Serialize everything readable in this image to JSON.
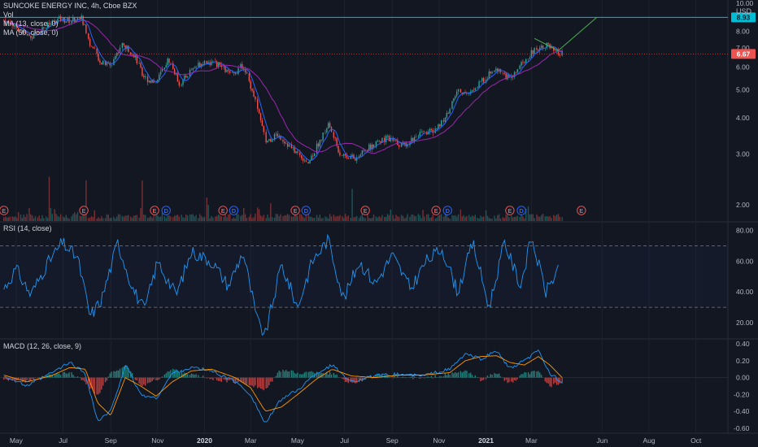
{
  "header": {
    "title": "SUNCOKE ENERGY INC, 4h, Cboe BZX",
    "vol_label": "Vol",
    "ma1_label": "MA (13, close, 0)",
    "ma2_label": "MA (50, close, 0)",
    "currency": "USD"
  },
  "rsi_label": "RSI (14, close)",
  "macd_label": "MACD (12, 26, close, 9)",
  "colors": {
    "background": "#131722",
    "grid": "#1e222d",
    "up": "#26a69a",
    "down": "#ef5350",
    "ma_fast": "#2962ff",
    "ma_slow": "#9c27b0",
    "rsi": "#2196f3",
    "macd": "#2196f3",
    "signal": "#ff9800",
    "resistance": "#00bcd4",
    "trendline": "#4caf50",
    "event_earnings": "#ef5350",
    "event_dividend": "#2962ff"
  },
  "chart_data": [
    {
      "type": "candlestick",
      "name": "price",
      "x_axis": [
        "May",
        "Jul",
        "Sep",
        "Nov",
        "2020",
        "Mar",
        "May",
        "Jul",
        "Sep",
        "Nov",
        "2021",
        "Mar",
        "Jun",
        "Aug",
        "Oct"
      ],
      "y_ticks": [
        "10.00",
        "8.93",
        "8.00",
        "7.00",
        "6.67",
        "6.00",
        "5.00",
        "4.00",
        "3.00",
        "2.00"
      ],
      "ylim": [
        1.8,
        10.0
      ],
      "price_path": [
        [
          "2019-04-15",
          8.7
        ],
        [
          "2019-05-01",
          8.3
        ],
        [
          "2019-05-20",
          7.6
        ],
        [
          "2019-06-05",
          8.2
        ],
        [
          "2019-06-25",
          8.8
        ],
        [
          "2019-07-10",
          8.7
        ],
        [
          "2019-07-25",
          8.9
        ],
        [
          "2019-08-05",
          7.2
        ],
        [
          "2019-08-20",
          6.2
        ],
        [
          "2019-09-01",
          6.1
        ],
        [
          "2019-09-15",
          7.2
        ],
        [
          "2019-09-30",
          6.7
        ],
        [
          "2019-10-15",
          5.5
        ],
        [
          "2019-10-30",
          5.3
        ],
        [
          "2019-11-15",
          6.4
        ],
        [
          "2019-11-30",
          5.2
        ],
        [
          "2019-12-15",
          5.9
        ],
        [
          "2020-01-01",
          6.3
        ],
        [
          "2020-01-20",
          6.1
        ],
        [
          "2020-02-05",
          5.6
        ],
        [
          "2020-02-20",
          6.1
        ],
        [
          "2020-03-05",
          4.8
        ],
        [
          "2020-03-20",
          3.3
        ],
        [
          "2020-04-05",
          3.5
        ],
        [
          "2020-04-25",
          3.1
        ],
        [
          "2020-05-15",
          2.8
        ],
        [
          "2020-06-01",
          3.4
        ],
        [
          "2020-06-10",
          3.8
        ],
        [
          "2020-06-25",
          3.0
        ],
        [
          "2020-07-15",
          2.9
        ],
        [
          "2020-08-05",
          3.2
        ],
        [
          "2020-08-25",
          3.4
        ],
        [
          "2020-09-15",
          3.2
        ],
        [
          "2020-10-05",
          3.5
        ],
        [
          "2020-10-25",
          3.6
        ],
        [
          "2020-11-10",
          4.0
        ],
        [
          "2020-11-25",
          5.0
        ],
        [
          "2020-12-10",
          4.8
        ],
        [
          "2020-12-25",
          5.3
        ],
        [
          "2021-01-15",
          6.0
        ],
        [
          "2021-02-01",
          5.4
        ],
        [
          "2021-02-20",
          6.3
        ],
        [
          "2021-03-05",
          6.9
        ],
        [
          "2021-03-20",
          7.2
        ],
        [
          "2021-04-01",
          6.7
        ],
        [
          "2021-04-10",
          6.67
        ]
      ],
      "resistance_level": 8.93,
      "last_price": 6.67,
      "earnings_event_dates": [
        "2019-04-15",
        "2019-07-28",
        "2019-10-28",
        "2020-01-25",
        "2020-04-28",
        "2020-07-28",
        "2020-10-28",
        "2021-02-01",
        "2021-05-05"
      ],
      "dividend_event_dates": [
        "2019-11-12",
        "2020-02-08",
        "2020-05-12",
        "2020-11-12",
        "2021-02-16"
      ]
    },
    {
      "type": "line",
      "name": "RSI",
      "y_ticks": [
        "80.00",
        "60.00",
        "40.00",
        "20.00"
      ],
      "ylim": [
        10,
        85
      ],
      "bands": [
        70,
        30
      ],
      "path": [
        [
          "2019-04-15",
          42
        ],
        [
          "2019-05-01",
          55
        ],
        [
          "2019-05-20",
          38
        ],
        [
          "2019-06-10",
          58
        ],
        [
          "2019-06-30",
          72
        ],
        [
          "2019-07-20",
          62
        ],
        [
          "2019-08-05",
          24
        ],
        [
          "2019-08-20",
          35
        ],
        [
          "2019-09-10",
          72
        ],
        [
          "2019-09-30",
          42
        ],
        [
          "2019-10-15",
          28
        ],
        [
          "2019-11-01",
          60
        ],
        [
          "2019-11-25",
          38
        ],
        [
          "2019-12-15",
          66
        ],
        [
          "2020-01-10",
          60
        ],
        [
          "2020-02-01",
          44
        ],
        [
          "2020-02-20",
          66
        ],
        [
          "2020-03-10",
          20
        ],
        [
          "2020-03-20",
          12
        ],
        [
          "2020-04-10",
          58
        ],
        [
          "2020-05-01",
          30
        ],
        [
          "2020-05-20",
          60
        ],
        [
          "2020-06-10",
          74
        ],
        [
          "2020-06-30",
          35
        ],
        [
          "2020-07-20",
          60
        ],
        [
          "2020-08-10",
          45
        ],
        [
          "2020-09-01",
          64
        ],
        [
          "2020-09-25",
          42
        ],
        [
          "2020-10-15",
          60
        ],
        [
          "2020-11-05",
          68
        ],
        [
          "2020-11-25",
          40
        ],
        [
          "2020-12-15",
          72
        ],
        [
          "2021-01-05",
          30
        ],
        [
          "2021-01-25",
          72
        ],
        [
          "2021-02-15",
          44
        ],
        [
          "2021-03-01",
          75
        ],
        [
          "2021-03-20",
          40
        ],
        [
          "2021-04-05",
          55
        ]
      ]
    },
    {
      "type": "line",
      "name": "MACD",
      "y_ticks": [
        "0.40",
        "0.20",
        "0.00",
        "-0.20",
        "-0.40",
        "-0.60"
      ],
      "ylim": [
        -0.65,
        0.45
      ],
      "macd_path": [
        [
          "2019-04-15",
          0.02
        ],
        [
          "2019-05-15",
          -0.1
        ],
        [
          "2019-06-15",
          0.05
        ],
        [
          "2019-07-10",
          0.18
        ],
        [
          "2019-07-30",
          0.05
        ],
        [
          "2019-08-15",
          -0.52
        ],
        [
          "2019-09-01",
          -0.4
        ],
        [
          "2019-09-20",
          0.15
        ],
        [
          "2019-10-10",
          -0.2
        ],
        [
          "2019-10-30",
          -0.25
        ],
        [
          "2019-11-20",
          0.05
        ],
        [
          "2019-12-15",
          0.12
        ],
        [
          "2020-01-10",
          0.08
        ],
        [
          "2020-02-10",
          -0.05
        ],
        [
          "2020-03-01",
          -0.2
        ],
        [
          "2020-03-20",
          -0.55
        ],
        [
          "2020-04-10",
          -0.25
        ],
        [
          "2020-05-01",
          -0.15
        ],
        [
          "2020-05-25",
          0.05
        ],
        [
          "2020-06-15",
          0.15
        ],
        [
          "2020-07-10",
          -0.05
        ],
        [
          "2020-08-10",
          0.02
        ],
        [
          "2020-09-10",
          0.04
        ],
        [
          "2020-10-10",
          0.02
        ],
        [
          "2020-11-15",
          0.1
        ],
        [
          "2020-12-05",
          0.28
        ],
        [
          "2020-12-25",
          0.22
        ],
        [
          "2021-01-15",
          0.32
        ],
        [
          "2021-02-01",
          0.1
        ],
        [
          "2021-02-20",
          0.2
        ],
        [
          "2021-03-10",
          0.32
        ],
        [
          "2021-03-25",
          0.05
        ],
        [
          "2021-04-10",
          -0.05
        ]
      ],
      "signal_path": [
        [
          "2019-04-15",
          0.03
        ],
        [
          "2019-05-15",
          -0.05
        ],
        [
          "2019-06-15",
          0.02
        ],
        [
          "2019-07-10",
          0.12
        ],
        [
          "2019-07-30",
          0.1
        ],
        [
          "2019-08-15",
          -0.3
        ],
        [
          "2019-09-01",
          -0.45
        ],
        [
          "2019-09-20",
          0.0
        ],
        [
          "2019-10-10",
          -0.1
        ],
        [
          "2019-10-30",
          -0.22
        ],
        [
          "2019-11-20",
          -0.05
        ],
        [
          "2019-12-15",
          0.08
        ],
        [
          "2020-01-10",
          0.1
        ],
        [
          "2020-02-10",
          0.0
        ],
        [
          "2020-03-01",
          -0.12
        ],
        [
          "2020-03-20",
          -0.4
        ],
        [
          "2020-04-10",
          -0.35
        ],
        [
          "2020-05-01",
          -0.2
        ],
        [
          "2020-05-25",
          -0.02
        ],
        [
          "2020-06-15",
          0.1
        ],
        [
          "2020-07-10",
          0.02
        ],
        [
          "2020-08-10",
          0.0
        ],
        [
          "2020-09-10",
          0.03
        ],
        [
          "2020-10-10",
          0.03
        ],
        [
          "2020-11-15",
          0.06
        ],
        [
          "2020-12-05",
          0.2
        ],
        [
          "2020-12-25",
          0.25
        ],
        [
          "2021-01-15",
          0.26
        ],
        [
          "2021-02-01",
          0.18
        ],
        [
          "2021-02-20",
          0.15
        ],
        [
          "2021-03-10",
          0.25
        ],
        [
          "2021-03-25",
          0.15
        ],
        [
          "2021-04-10",
          0.0
        ]
      ]
    }
  ]
}
